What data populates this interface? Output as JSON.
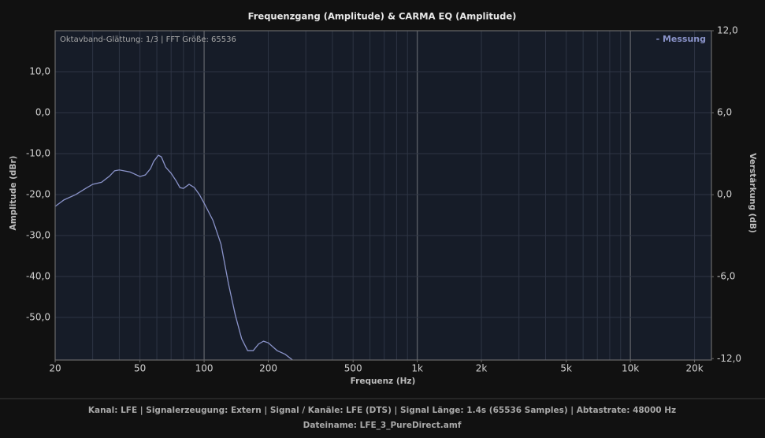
{
  "chart_data": {
    "type": "line",
    "title": "Frequenzgang (Amplitude) & CARMA EQ (Amplitude)",
    "annotation": "Oktavband-Glättung: 1/3 | FFT Größe: 65536",
    "xlabel": "Frequenz (Hz)",
    "ylabel": "Amplitude (dBr)",
    "y2label": "Verstärkung (dB)",
    "xscale": "log",
    "xlim": [
      20,
      24000
    ],
    "xticks": [
      20,
      50,
      100,
      200,
      500,
      {
        "value": 1000,
        "label": "1k"
      },
      {
        "value": 2000,
        "label": "2k"
      },
      {
        "value": 5000,
        "label": "5k"
      },
      {
        "value": 10000,
        "label": "10k"
      },
      {
        "value": 20000,
        "label": "20k"
      }
    ],
    "ylim": [
      -60.4,
      20
    ],
    "yticks": [
      {
        "value": -50,
        "label": "-50,0"
      },
      {
        "value": -40,
        "label": "-40,0"
      },
      {
        "value": -30,
        "label": "-30,0"
      },
      {
        "value": -20,
        "label": "-20,0"
      },
      {
        "value": -10,
        "label": "-10,0"
      },
      {
        "value": 0,
        "label": "0,0"
      },
      {
        "value": 10,
        "label": "10,0"
      }
    ],
    "y2lim": [
      -12.1,
      12
    ],
    "y2ticks": [
      {
        "value": -12,
        "label": "-12,0"
      },
      {
        "value": -6,
        "label": "-6,0"
      },
      {
        "value": 0,
        "label": "0,0"
      },
      {
        "value": 6,
        "label": "6,0"
      },
      {
        "value": 12,
        "label": "12,0"
      }
    ],
    "grid": true,
    "legend": "top-right",
    "x": [
      20,
      22,
      25,
      28,
      30,
      33,
      36,
      38,
      40,
      45,
      50,
      53,
      56,
      58,
      61,
      63,
      66,
      70,
      74,
      77,
      80,
      85,
      90,
      95,
      100,
      110,
      120,
      130,
      140,
      150,
      160,
      170,
      180,
      190,
      200,
      220,
      240,
      260
    ],
    "series": [
      {
        "name": "- Messung",
        "color": "#8a93c9",
        "values": [
          -22.9,
          -21.3,
          -20.0,
          -18.4,
          -17.5,
          -17.0,
          -15.5,
          -14.2,
          -14.0,
          -14.5,
          -15.6,
          -15.2,
          -13.7,
          -11.9,
          -10.4,
          -10.8,
          -13.3,
          -14.8,
          -16.7,
          -18.3,
          -18.5,
          -17.5,
          -18.3,
          -20.0,
          -22.1,
          -26.3,
          -32.1,
          -41.7,
          -49.4,
          -55.2,
          -58.1,
          -58.1,
          -56.5,
          -55.8,
          -56.2,
          -58.1,
          -59.0,
          -60.4
        ]
      }
    ],
    "footer": [
      "Kanal: LFE  |  Signalerzeugung: Extern   |  Signal / Kanäle: LFE (DTS)  |  Signal Länge: 1.4s (65536 Samples)  |  Abtastrate: 48000 Hz",
      "Dateiname: LFE_3_PureDirect.amf"
    ]
  }
}
